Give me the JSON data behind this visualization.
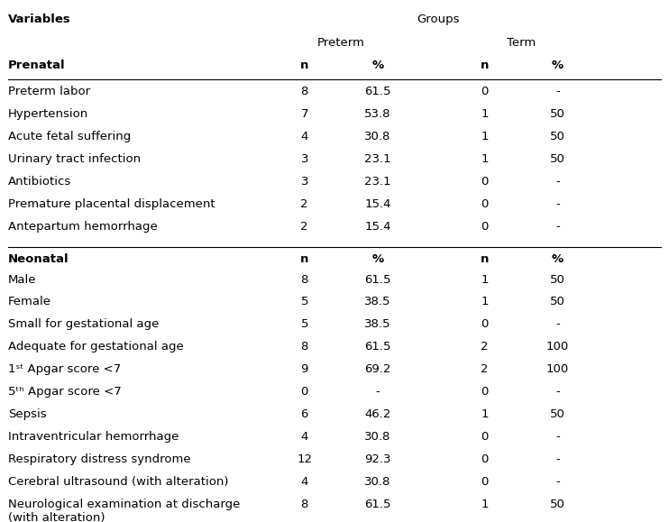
{
  "title_left": "Variables",
  "title_groups": "Groups",
  "col_preterm": "Preterm",
  "col_term": "Term",
  "col_n": "n",
  "col_pct": "%",
  "section1_label": "Prenatal",
  "section2_label": "Neonatal",
  "prenatal_rows": [
    [
      "Preterm labor",
      "8",
      "61.5",
      "0",
      "-"
    ],
    [
      "Hypertension",
      "7",
      "53.8",
      "1",
      "50"
    ],
    [
      "Acute fetal suffering",
      "4",
      "30.8",
      "1",
      "50"
    ],
    [
      "Urinary tract infection",
      "3",
      "23.1",
      "1",
      "50"
    ],
    [
      "Antibiotics",
      "3",
      "23.1",
      "0",
      "-"
    ],
    [
      "Premature placental displacement",
      "2",
      "15.4",
      "0",
      "-"
    ],
    [
      "Antepartum hemorrhage",
      "2",
      "15.4",
      "0",
      "-"
    ]
  ],
  "neonatal_rows": [
    [
      "Male",
      "8",
      "61.5",
      "1",
      "50"
    ],
    [
      "Female",
      "5",
      "38.5",
      "1",
      "50"
    ],
    [
      "Small for gestational age",
      "5",
      "38.5",
      "0",
      "-"
    ],
    [
      "Adequate for gestational age",
      "8",
      "61.5",
      "2",
      "100"
    ],
    [
      "1ˢᵗ Apgar score <7",
      "9",
      "69.2",
      "2",
      "100"
    ],
    [
      "5ᵗʰ Apgar score <7",
      "0",
      "-",
      "0",
      "-"
    ],
    [
      "Sepsis",
      "6",
      "46.2",
      "1",
      "50"
    ],
    [
      "Intraventricular hemorrhage",
      "4",
      "30.8",
      "0",
      "-"
    ],
    [
      "Respiratory distress syndrome",
      "12",
      "92.3",
      "0",
      "-"
    ],
    [
      "Cerebral ultrasound (with alteration)",
      "4",
      "30.8",
      "0",
      "-"
    ],
    [
      "Neurological examination at discharge\n(with alteration)",
      "8",
      "61.5",
      "1",
      "50"
    ]
  ],
  "bg_color": "#ffffff",
  "text_color": "#000000",
  "font_size": 9.5
}
